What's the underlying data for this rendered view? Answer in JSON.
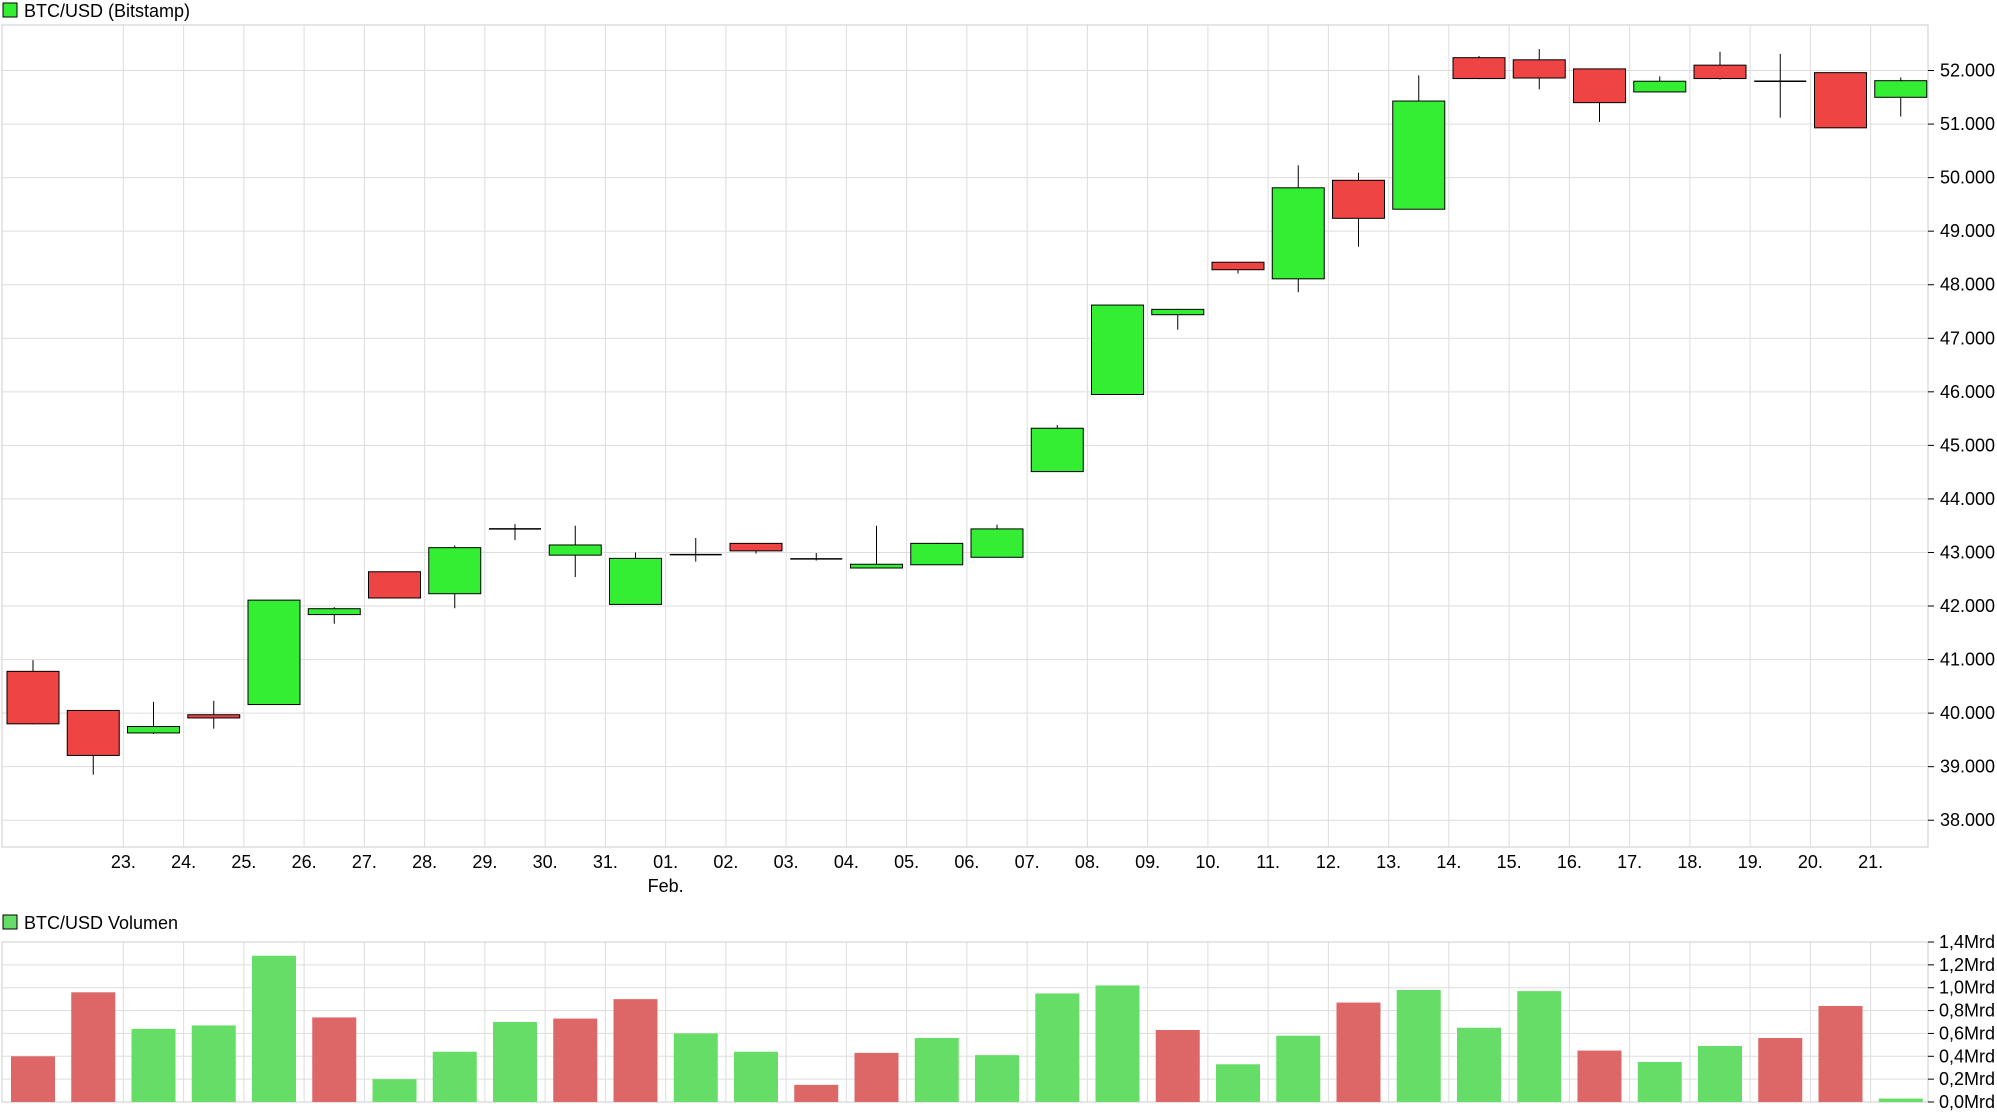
{
  "chart_data": [
    {
      "type": "candlestick",
      "title": "BTC/USD (Bitstamp)",
      "legend": "BTC/USD (Bitstamp)",
      "colors": {
        "up": "#33ee33",
        "down": "#ee4444",
        "grid": "#dddddd",
        "border": "#cccccc"
      },
      "x_tick_labels": [
        "23.",
        "24.",
        "25.",
        "26.",
        "27.",
        "28.",
        "29.",
        "30.",
        "31.",
        "01.",
        "02.",
        "03.",
        "04.",
        "05.",
        "06.",
        "07.",
        "08.",
        "09.",
        "10.",
        "11.",
        "12.",
        "13.",
        "14.",
        "15.",
        "16.",
        "17.",
        "18.",
        "19.",
        "20.",
        "21."
      ],
      "month_label": {
        "text": "Feb.",
        "under": "01."
      },
      "y_ticks": [
        38000,
        39000,
        40000,
        41000,
        42000,
        43000,
        44000,
        45000,
        46000,
        47000,
        48000,
        49000,
        50000,
        51000,
        52000
      ],
      "y_tick_labels": [
        "38.000",
        "39.000",
        "40.000",
        "41.000",
        "42.000",
        "43.000",
        "44.000",
        "45.000",
        "46.000",
        "47.000",
        "48.000",
        "49.000",
        "50.000",
        "51.000",
        "52.000"
      ],
      "ylim": [
        37500,
        52850
      ],
      "grid": true,
      "candles": [
        {
          "o": 40780,
          "h": 40990,
          "l": 39790,
          "c": 39800
        },
        {
          "o": 40050,
          "h": 40050,
          "l": 38850,
          "c": 39210
        },
        {
          "o": 39630,
          "h": 40210,
          "l": 39610,
          "c": 39750
        },
        {
          "o": 39970,
          "h": 40230,
          "l": 39710,
          "c": 39910
        },
        {
          "o": 40160,
          "h": 42110,
          "l": 40160,
          "c": 42110
        },
        {
          "o": 41840,
          "h": 41980,
          "l": 41670,
          "c": 41950
        },
        {
          "o": 42640,
          "h": 42640,
          "l": 42150,
          "c": 42150
        },
        {
          "o": 42230,
          "h": 43130,
          "l": 41960,
          "c": 43090
        },
        {
          "o": 43430,
          "h": 43530,
          "l": 43230,
          "c": 43440
        },
        {
          "o": 42950,
          "h": 43500,
          "l": 42540,
          "c": 43140
        },
        {
          "o": 42030,
          "h": 43000,
          "l": 42030,
          "c": 42890
        },
        {
          "o": 42950,
          "h": 43270,
          "l": 42830,
          "c": 42960
        },
        {
          "o": 43170,
          "h": 43170,
          "l": 42980,
          "c": 43030
        },
        {
          "o": 42880,
          "h": 42990,
          "l": 42850,
          "c": 42860
        },
        {
          "o": 42710,
          "h": 43500,
          "l": 42710,
          "c": 42780
        },
        {
          "o": 42770,
          "h": 43180,
          "l": 42770,
          "c": 43170
        },
        {
          "o": 42910,
          "h": 43520,
          "l": 42910,
          "c": 43440
        },
        {
          "o": 44510,
          "h": 45380,
          "l": 44510,
          "c": 45320
        },
        {
          "o": 45950,
          "h": 47620,
          "l": 45950,
          "c": 47620
        },
        {
          "o": 47440,
          "h": 47550,
          "l": 47160,
          "c": 47540
        },
        {
          "o": 48420,
          "h": 48420,
          "l": 48210,
          "c": 48280
        },
        {
          "o": 48110,
          "h": 50230,
          "l": 47860,
          "c": 49810
        },
        {
          "o": 49950,
          "h": 50090,
          "l": 48710,
          "c": 49240
        },
        {
          "o": 49410,
          "h": 51910,
          "l": 49410,
          "c": 51430
        },
        {
          "o": 52240,
          "h": 52270,
          "l": 51840,
          "c": 51850
        },
        {
          "o": 52200,
          "h": 52400,
          "l": 51650,
          "c": 51860
        },
        {
          "o": 52030,
          "h": 52030,
          "l": 51040,
          "c": 51400
        },
        {
          "o": 51600,
          "h": 51890,
          "l": 51600,
          "c": 51800
        },
        {
          "o": 52100,
          "h": 52350,
          "l": 51830,
          "c": 51850
        },
        {
          "o": 51800,
          "h": 52310,
          "l": 51120,
          "c": 51790
        },
        {
          "o": 51960,
          "h": 51960,
          "l": 50930,
          "c": 50930
        },
        {
          "o": 51500,
          "h": 51870,
          "l": 51140,
          "c": 51810
        }
      ]
    },
    {
      "type": "bar",
      "title": "BTC/USD Volumen",
      "legend": "BTC/USD Volumen",
      "colors": {
        "up": "#66dd66",
        "down": "#dd6666"
      },
      "y_ticks": [
        0,
        0.2,
        0.4,
        0.6,
        0.8,
        1.0,
        1.2,
        1.4
      ],
      "y_tick_labels": [
        "0,0Mrd",
        "0,2Mrd",
        "0,4Mrd",
        "0,6Mrd",
        "0,8Mrd",
        "1,0Mrd",
        "1,2Mrd",
        "1,4Mrd"
      ],
      "ylim": [
        0,
        1.4
      ],
      "unit": "Mrd",
      "bars": [
        {
          "v": 0.4,
          "dir": "down"
        },
        {
          "v": 0.96,
          "dir": "down"
        },
        {
          "v": 0.64,
          "dir": "up"
        },
        {
          "v": 0.67,
          "dir": "up"
        },
        {
          "v": 1.28,
          "dir": "up"
        },
        {
          "v": 0.74,
          "dir": "down"
        },
        {
          "v": 0.2,
          "dir": "up"
        },
        {
          "v": 0.44,
          "dir": "up"
        },
        {
          "v": 0.7,
          "dir": "up"
        },
        {
          "v": 0.73,
          "dir": "down"
        },
        {
          "v": 0.9,
          "dir": "down"
        },
        {
          "v": 0.6,
          "dir": "up"
        },
        {
          "v": 0.44,
          "dir": "up"
        },
        {
          "v": 0.15,
          "dir": "down"
        },
        {
          "v": 0.43,
          "dir": "down"
        },
        {
          "v": 0.56,
          "dir": "up"
        },
        {
          "v": 0.41,
          "dir": "up"
        },
        {
          "v": 0.95,
          "dir": "up"
        },
        {
          "v": 1.02,
          "dir": "up"
        },
        {
          "v": 0.63,
          "dir": "down"
        },
        {
          "v": 0.33,
          "dir": "up"
        },
        {
          "v": 0.58,
          "dir": "up"
        },
        {
          "v": 0.87,
          "dir": "down"
        },
        {
          "v": 0.98,
          "dir": "up"
        },
        {
          "v": 0.65,
          "dir": "up"
        },
        {
          "v": 0.97,
          "dir": "up"
        },
        {
          "v": 0.45,
          "dir": "down"
        },
        {
          "v": 0.35,
          "dir": "up"
        },
        {
          "v": 0.49,
          "dir": "up"
        },
        {
          "v": 0.56,
          "dir": "down"
        },
        {
          "v": 0.84,
          "dir": "down"
        },
        {
          "v": 0.03,
          "dir": "up"
        }
      ]
    }
  ]
}
